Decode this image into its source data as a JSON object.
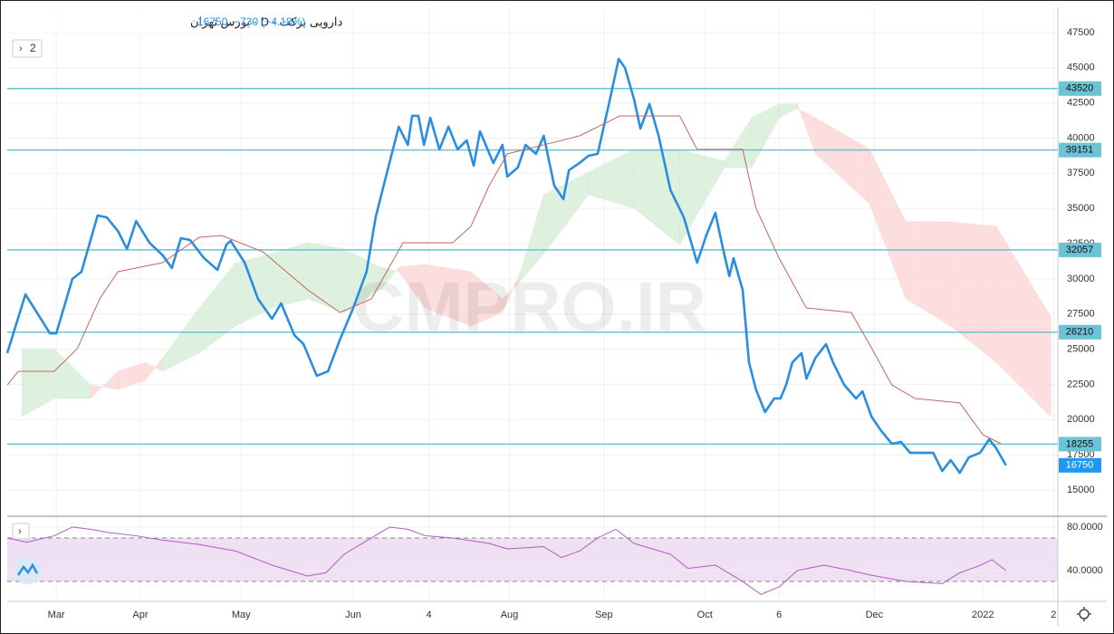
{
  "chart_data": {
    "type": "line",
    "header": {
      "title": "دارویی برکت · D · بورس تهران",
      "price": "16750",
      "change": "−730 (−4.18%)",
      "collapsed": "2"
    },
    "watermark": "CMPRO.IR",
    "xlim": [
      0,
      150
    ],
    "xticks": [
      {
        "value": 7,
        "label": "Mar"
      },
      {
        "value": 19,
        "label": "Apr"
      },
      {
        "value": 33.4,
        "label": "May"
      },
      {
        "value": 49.4,
        "label": "Jun"
      },
      {
        "value": 60.2,
        "label": "4"
      },
      {
        "value": 71.7,
        "label": "Aug"
      },
      {
        "value": 85.2,
        "label": "Sep"
      },
      {
        "value": 99.6,
        "label": "Oct"
      },
      {
        "value": 110.2,
        "label": "6"
      },
      {
        "value": 123.8,
        "label": "Dec"
      },
      {
        "value": 139.3,
        "label": "2022"
      },
      {
        "value": 149.4,
        "label": "2"
      }
    ],
    "ylim": [
      13260,
      49170
    ],
    "yticks": [
      15000,
      17500,
      20000,
      22500,
      25000,
      27500,
      30000,
      32500,
      35000,
      37500,
      40000,
      42500,
      45000,
      47500
    ],
    "grid": true,
    "series": [
      {
        "color": "#2a8ee0",
        "x": [
          0,
          2.6,
          4.8,
          6.1,
          7,
          9.3,
          10.6,
          12.9,
          14.2,
          15.8,
          17.1,
          18.4,
          20.3,
          22.2,
          23.5,
          24.8,
          26.1,
          28.1,
          30,
          31.3,
          31.9,
          33.9,
          35.8,
          37.8,
          39.1,
          41,
          42.3,
          44.2,
          45.8,
          47.5,
          49.4,
          51.3,
          52.6,
          53.9,
          55.9,
          57.2,
          57.8,
          58.7,
          59.5,
          60.4,
          61.7,
          63,
          64.3,
          65.6,
          66.6,
          67.5,
          69.4,
          70.7,
          71.4,
          72.9,
          74,
          75.5,
          76.6,
          78.1,
          79.4,
          80.2,
          81.7,
          83,
          84.3,
          85.9,
          87.3,
          88.2,
          89.5,
          90.4,
          91.7,
          93,
          94.7,
          96.6,
          98.5,
          99.8,
          101.1,
          102.2,
          103.1,
          103.7,
          105,
          105.9,
          106.9,
          108.2,
          109.5,
          110.4,
          111.2,
          112.1,
          113.4,
          114.1,
          115.4,
          116.9,
          117.9,
          119.5,
          121.2,
          122.1,
          123.4,
          124.7,
          126.3,
          127.6,
          128.9,
          130.2,
          132.2,
          133.5,
          134.7,
          136,
          137.3,
          138.9,
          140.2,
          141.2,
          142.6
        ],
        "values": [
          24720,
          28900,
          27160,
          26130,
          26130,
          29990,
          30510,
          34500,
          34370,
          33400,
          32120,
          34110,
          32570,
          31670,
          30770,
          32890,
          32760,
          31470,
          30640,
          32440,
          32700,
          31150,
          28580,
          27160,
          28260,
          26000,
          25360,
          23110,
          23430,
          25680,
          27930,
          30510,
          34370,
          36940,
          40810,
          39520,
          41580,
          41580,
          39520,
          41450,
          39200,
          40810,
          39200,
          39840,
          38040,
          40480,
          38230,
          39520,
          37270,
          37910,
          39520,
          38880,
          40160,
          36620,
          35660,
          37720,
          38230,
          38750,
          38880,
          42420,
          45630,
          44990,
          42740,
          40680,
          42420,
          40160,
          36300,
          34370,
          31150,
          33080,
          34690,
          32120,
          30190,
          31470,
          29220,
          24070,
          22140,
          20530,
          21500,
          21500,
          22460,
          24070,
          24720,
          22910,
          24390,
          25360,
          24070,
          22460,
          21500,
          22010,
          20210,
          19250,
          18280,
          18410,
          17640,
          17640,
          17640,
          16350,
          17120,
          16220,
          17320,
          17640,
          18600,
          17960,
          16750
        ]
      },
      {
        "color": "#c0675f",
        "x": [
          0,
          1.6,
          6.7,
          10,
          13.2,
          15.8,
          22.2,
          27.4,
          30.6,
          36.5,
          42.9,
          47.5,
          52,
          56.5,
          63.6,
          66.2,
          68.8,
          71.4,
          76.6,
          81.7,
          87.5,
          96,
          98.5,
          105,
          106.9,
          110.2,
          114.1,
          120.5,
          123.1,
          126.3,
          129.6,
          136,
          139.3,
          141.9
        ],
        "values": [
          22460,
          23430,
          23430,
          25040,
          28580,
          30510,
          31150,
          32950,
          33080,
          31920,
          29220,
          27610,
          28580,
          32570,
          32570,
          33730,
          36620,
          38880,
          39520,
          40160,
          41580,
          41580,
          39200,
          39200,
          35020,
          31470,
          27930,
          27610,
          25360,
          22460,
          21500,
          21180,
          18930,
          18280
        ]
      }
    ],
    "cloud": {
      "colors": [
        "#d6ecd6",
        "#fcd6d6"
      ],
      "x": [
        2.1,
        6.7,
        11.9,
        15.8,
        19.7,
        22.2,
        27.4,
        32.6,
        37.8,
        42.9,
        48.1,
        53.3,
        55.9,
        59.7,
        66.2,
        70.7,
        73.3,
        76.6,
        83,
        89.5,
        96,
        102.4,
        106.3,
        110.2,
        112.8,
        115.4,
        123.1,
        128.3,
        134.7,
        141.2,
        149
      ],
      "span_a": [
        25040,
        25040,
        22460,
        22140,
        22790,
        24390,
        27930,
        31150,
        31800,
        32570,
        32120,
        30830,
        30510,
        27930,
        26650,
        27610,
        30510,
        35980,
        37590,
        39200,
        39200,
        38360,
        41450,
        42420,
        42420,
        38880,
        35340,
        28580,
        26650,
        24070,
        20210
      ],
      "span_b": [
        20210,
        21500,
        21500,
        23430,
        24070,
        23430,
        24720,
        26650,
        27930,
        28580,
        27610,
        29220,
        30830,
        31020,
        30510,
        28580,
        29860,
        31800,
        35980,
        35010,
        32440,
        37910,
        37910,
        41450,
        42090,
        41450,
        39200,
        34050,
        34050,
        33730,
        27290
      ]
    },
    "levels": {
      "color": "#6cc3d5",
      "values": [
        43520,
        39151,
        32057,
        26210,
        18255
      ]
    },
    "last_color": "#2196f3",
    "rsi": {
      "color": "#b05cc0",
      "band_fill": "#f0e0f4",
      "ylim": [
        13.3,
        88.3
      ],
      "yticks": [
        {
          "value": 80,
          "label": "80.0000"
        },
        {
          "value": 40,
          "label": "40.0000"
        }
      ],
      "bands": [
        70,
        30
      ],
      "x": [
        0,
        2.8,
        6.7,
        9.3,
        11.9,
        14.5,
        18.4,
        22.2,
        27.4,
        32.6,
        37.8,
        42.9,
        45.5,
        48.1,
        52,
        54.6,
        57.2,
        59.7,
        63.6,
        68.8,
        71.4,
        76.6,
        79.1,
        81.7,
        84.3,
        86.9,
        89.5,
        94.7,
        97.2,
        101.1,
        105,
        107.6,
        110.2,
        112.8,
        116.6,
        120.5,
        123.1,
        128.3,
        133.5,
        136,
        138.6,
        140.6,
        142.6
      ],
      "values": [
        70,
        66,
        72,
        80,
        78,
        75,
        72,
        68,
        64,
        58,
        45,
        35,
        38,
        55,
        70,
        80,
        78,
        72,
        70,
        65,
        60,
        62,
        52,
        58,
        70,
        78,
        65,
        55,
        42,
        45,
        30,
        18,
        25,
        40,
        45,
        40,
        36,
        30,
        28,
        38,
        44,
        50,
        40
      ]
    }
  }
}
